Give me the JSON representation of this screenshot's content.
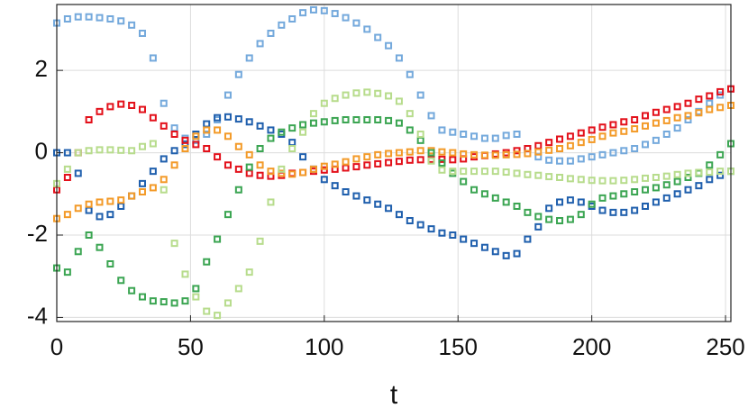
{
  "chart_data": {
    "type": "scatter",
    "xlabel": "t",
    "xlim": [
      0,
      252
    ],
    "ylim": [
      -4.1,
      3.6
    ],
    "xticks": [
      0,
      50,
      100,
      150,
      200,
      250
    ],
    "yticks": [
      -4,
      -2,
      0,
      2
    ],
    "grid": true,
    "x": [
      0,
      4,
      8,
      12,
      16,
      20,
      24,
      28,
      32,
      36,
      40,
      44,
      48,
      52,
      56,
      60,
      64,
      68,
      72,
      76,
      80,
      84,
      88,
      92,
      96,
      100,
      104,
      108,
      112,
      116,
      120,
      124,
      128,
      132,
      136,
      140,
      144,
      148,
      152,
      156,
      160,
      164,
      168,
      172,
      176,
      180,
      184,
      188,
      192,
      196,
      200,
      204,
      208,
      212,
      216,
      220,
      224,
      228,
      232,
      236,
      240,
      244,
      248,
      252
    ],
    "series": [
      {
        "color": "#74a9dc",
        "values": [
          3.15,
          3.25,
          3.3,
          3.3,
          3.28,
          3.25,
          3.2,
          3.1,
          2.9,
          2.3,
          1.2,
          0.6,
          0.35,
          0.3,
          0.45,
          0.8,
          1.4,
          1.9,
          2.3,
          2.65,
          2.9,
          3.1,
          3.25,
          3.4,
          3.47,
          3.45,
          3.38,
          3.28,
          3.15,
          3.0,
          2.8,
          2.6,
          2.3,
          1.9,
          1.4,
          0.9,
          0.55,
          0.5,
          0.45,
          0.4,
          0.35,
          0.35,
          0.42,
          0.45,
          0.1,
          -0.1,
          -0.18,
          -0.2,
          -0.2,
          -0.15,
          -0.1,
          -0.05,
          0,
          0.05,
          0.1,
          0.2,
          0.3,
          0.45,
          0.6,
          0.8,
          1.0,
          1.2,
          1.4,
          1.55
        ]
      },
      {
        "color": "#1f5fad",
        "values": [
          0,
          0,
          -0.5,
          -1.4,
          -1.55,
          -1.5,
          -1.3,
          -1.05,
          -0.75,
          -0.45,
          -0.15,
          0.05,
          0.2,
          0.45,
          0.7,
          0.85,
          0.87,
          0.82,
          0.75,
          0.65,
          0.55,
          0.45,
          0.25,
          -0.1,
          -0.4,
          -0.65,
          -0.8,
          -0.95,
          -1.05,
          -1.15,
          -1.25,
          -1.35,
          -1.5,
          -1.65,
          -1.75,
          -1.85,
          -1.95,
          -2.0,
          -2.1,
          -2.2,
          -2.3,
          -2.4,
          -2.5,
          -2.45,
          -2.1,
          -1.8,
          -1.35,
          -1.2,
          -1.15,
          -1.2,
          -1.3,
          -1.4,
          -1.45,
          -1.45,
          -1.4,
          -1.3,
          -1.2,
          -1.1,
          -1.0,
          -0.9,
          -0.8,
          -0.65,
          -0.55,
          -0.45
        ]
      },
      {
        "color": "#e3101a",
        "values": [
          -0.9,
          -0.6,
          0,
          0.8,
          1.0,
          1.12,
          1.18,
          1.15,
          1.05,
          0.85,
          0.65,
          0.45,
          0.3,
          0.2,
          0.1,
          -0.1,
          -0.3,
          -0.4,
          -0.5,
          -0.55,
          -0.57,
          -0.55,
          -0.5,
          -0.48,
          -0.45,
          -0.42,
          -0.4,
          -0.37,
          -0.34,
          -0.3,
          -0.27,
          -0.24,
          -0.21,
          -0.18,
          -0.17,
          -0.16,
          -0.16,
          -0.17,
          -0.15,
          -0.1,
          -0.07,
          -0.03,
          0,
          0.05,
          0.1,
          0.17,
          0.25,
          0.33,
          0.4,
          0.48,
          0.55,
          0.62,
          0.68,
          0.75,
          0.8,
          0.9,
          0.98,
          1.05,
          1.12,
          1.2,
          1.3,
          1.38,
          1.48,
          1.55
        ]
      },
      {
        "color": "#f39a28",
        "values": [
          -1.6,
          -1.5,
          -1.35,
          -1.25,
          -1.2,
          -1.18,
          -1.15,
          -1.05,
          -0.95,
          -0.85,
          -0.65,
          -0.3,
          0.1,
          0.4,
          0.55,
          0.55,
          0.4,
          0.15,
          -0.05,
          -0.3,
          -0.45,
          -0.5,
          -0.52,
          -0.48,
          -0.4,
          -0.33,
          -0.28,
          -0.22,
          -0.15,
          -0.1,
          -0.05,
          -0.02,
          0,
          0.02,
          0.05,
          0.05,
          0.02,
          0,
          -0.03,
          -0.05,
          -0.06,
          -0.06,
          -0.05,
          -0.04,
          -0.02,
          0.02,
          0.06,
          0.1,
          0.17,
          0.25,
          0.32,
          0.4,
          0.48,
          0.52,
          0.58,
          0.65,
          0.72,
          0.78,
          0.85,
          0.9,
          0.97,
          1.05,
          1.1,
          1.15
        ]
      },
      {
        "color": "#3ba552",
        "values": [
          -2.8,
          -2.9,
          -2.4,
          -2.0,
          -2.3,
          -2.7,
          -3.1,
          -3.35,
          -3.5,
          -3.6,
          -3.62,
          -3.65,
          -3.6,
          -3.3,
          -2.65,
          -2.1,
          -1.5,
          -0.9,
          -0.35,
          0.1,
          0.35,
          0.5,
          0.6,
          0.68,
          0.72,
          0.75,
          0.78,
          0.8,
          0.8,
          0.8,
          0.8,
          0.78,
          0.72,
          0.55,
          0.3,
          0,
          -0.25,
          -0.5,
          -0.7,
          -0.9,
          -1.0,
          -1.1,
          -1.2,
          -1.3,
          -1.45,
          -1.55,
          -1.62,
          -1.65,
          -1.62,
          -1.5,
          -1.25,
          -1.1,
          -1.05,
          -1.0,
          -0.95,
          -0.9,
          -0.85,
          -0.78,
          -0.7,
          -0.6,
          -0.5,
          -0.3,
          -0.05,
          0.22
        ]
      },
      {
        "color": "#b7dc8c",
        "values": [
          -0.75,
          -0.4,
          0,
          0.05,
          0.07,
          0.07,
          0.06,
          0.05,
          0.15,
          0.22,
          -0.9,
          -2.2,
          -2.95,
          -3.5,
          -3.85,
          -3.95,
          -3.65,
          -3.3,
          -2.9,
          -2.15,
          -1.2,
          -0.4,
          0.1,
          0.5,
          0.95,
          1.2,
          1.32,
          1.4,
          1.45,
          1.47,
          1.44,
          1.38,
          1.25,
          0.95,
          0.45,
          -0.2,
          -0.42,
          -0.45,
          -0.45,
          -0.45,
          -0.45,
          -0.45,
          -0.47,
          -0.5,
          -0.53,
          -0.55,
          -0.58,
          -0.6,
          -0.63,
          -0.65,
          -0.67,
          -0.68,
          -0.68,
          -0.67,
          -0.65,
          -0.62,
          -0.6,
          -0.57,
          -0.53,
          -0.5,
          -0.48,
          -0.47,
          -0.45,
          -0.45
        ]
      }
    ]
  }
}
